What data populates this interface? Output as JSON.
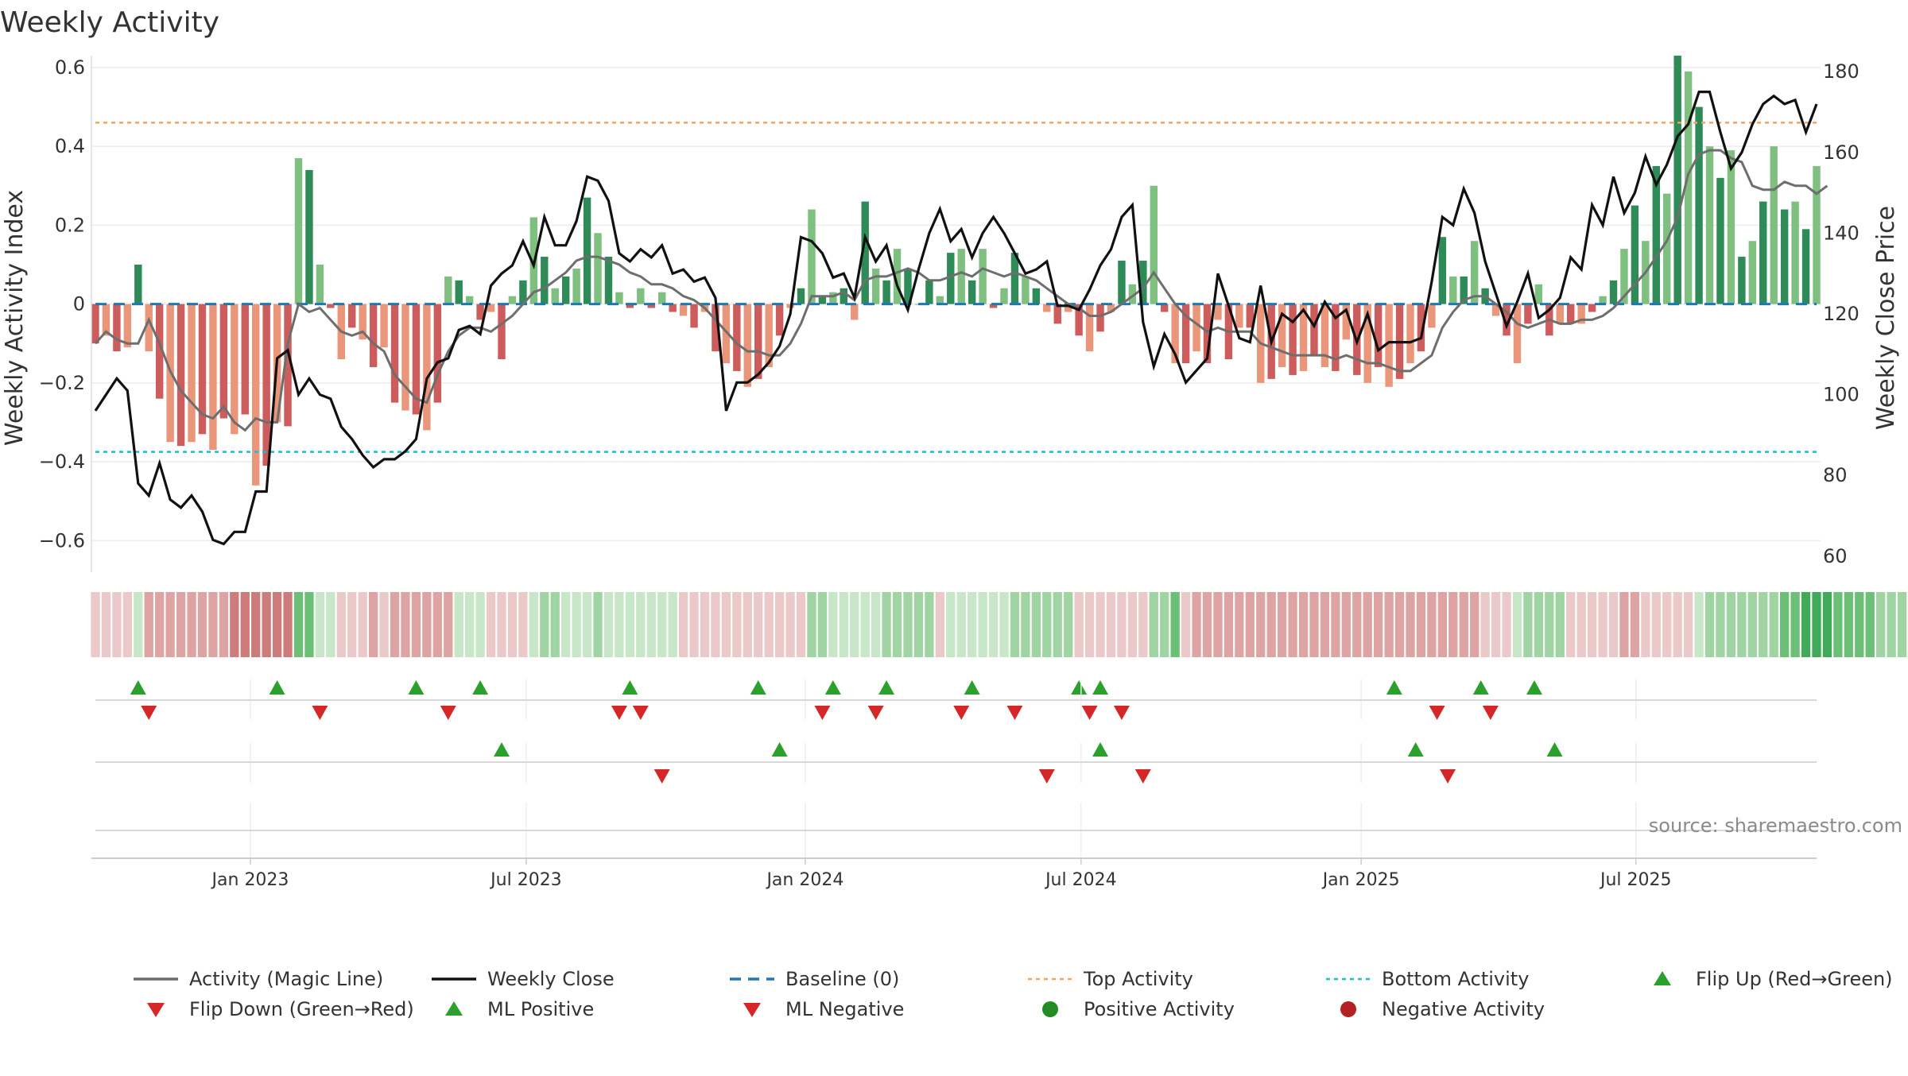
{
  "chart_data": {
    "type": "bar",
    "title": "Weekly Activity",
    "source": "source: sharemaestro.com",
    "left_axis": {
      "label": "Weekly Activity Index",
      "range": [
        -0.67,
        0.62
      ],
      "ticks": [
        0.6,
        0.4,
        0.2,
        0,
        -0.2,
        -0.4,
        -0.6
      ],
      "tick_labels": [
        "0.6",
        "0.4",
        "0.2",
        "0",
        "−0.2",
        "−0.4",
        "−0.6"
      ]
    },
    "right_axis": {
      "label": "Weekly Close Price",
      "range": [
        57,
        183
      ],
      "ticks": [
        180,
        160,
        140,
        120,
        100,
        80,
        60
      ],
      "tick_labels": [
        "180",
        "160",
        "140",
        "120",
        "100",
        "80",
        "60"
      ]
    },
    "x_axis": {
      "start_week_index": 0,
      "end_week_index": 155,
      "date_ticks": [
        {
          "label": "Jan 2023",
          "week": 14.5
        },
        {
          "label": "Jul 2023",
          "week": 40.3
        },
        {
          "label": "Jan 2024",
          "week": 66.4
        },
        {
          "label": "Jul 2024",
          "week": 92.2
        },
        {
          "label": "Jan 2025",
          "week": 118.4
        },
        {
          "label": "Jul 2025",
          "week": 144.1
        }
      ]
    },
    "reference_lines": {
      "baseline": 0,
      "top_activity": 0.46,
      "bottom_activity": -0.375
    },
    "activity_index": [
      -0.1,
      -0.08,
      -0.12,
      -0.11,
      0.1,
      -0.12,
      -0.24,
      -0.35,
      -0.36,
      -0.35,
      -0.33,
      -0.37,
      -0.29,
      -0.33,
      -0.28,
      -0.46,
      -0.41,
      -0.3,
      -0.31,
      0.37,
      0.34,
      0.1,
      -0.01,
      -0.14,
      -0.06,
      -0.09,
      -0.16,
      -0.11,
      -0.25,
      -0.27,
      -0.28,
      -0.32,
      -0.25,
      0.07,
      0.06,
      0.02,
      -0.04,
      -0.02,
      -0.14,
      0.02,
      0.06,
      0.22,
      0.12,
      0.04,
      0.07,
      0.09,
      0.27,
      0.18,
      0.12,
      0.03,
      -0.01,
      0.04,
      -0.01,
      0.03,
      -0.02,
      -0.03,
      -0.06,
      -0.02,
      -0.12,
      -0.15,
      -0.17,
      -0.21,
      -0.19,
      -0.16,
      -0.08,
      -0.01,
      0.04,
      0.24,
      0.02,
      0.03,
      0.04,
      -0.04,
      0.26,
      0.09,
      0.06,
      0.14,
      0.09,
      0.0,
      0.06,
      0.02,
      0.13,
      0.14,
      0.06,
      0.14,
      -0.01,
      0.04,
      0.13,
      0.07,
      0.04,
      -0.02,
      -0.05,
      -0.02,
      -0.08,
      -0.12,
      -0.07,
      -0.02,
      0.11,
      0.05,
      0.11,
      0.3,
      -0.02,
      -0.15,
      -0.15,
      -0.12,
      -0.15,
      -0.04,
      -0.14,
      -0.06,
      -0.06,
      -0.2,
      -0.19,
      -0.16,
      -0.18,
      -0.17,
      -0.13,
      -0.16,
      -0.17,
      -0.09,
      -0.18,
      -0.2,
      -0.16,
      -0.21,
      -0.19,
      -0.15,
      -0.12,
      -0.06,
      0.17,
      0.07,
      0.07,
      0.16,
      0.04,
      -0.03,
      -0.08,
      -0.15,
      -0.05,
      0.05,
      -0.08,
      -0.05,
      -0.05,
      -0.05,
      -0.02,
      0.02,
      0.06,
      0.14,
      0.25,
      0.16,
      0.35,
      0.28,
      0.63,
      0.59,
      0.5,
      0.4,
      0.32,
      0.39,
      0.12,
      0.16,
      0.26,
      0.4,
      0.24,
      0.26,
      0.19,
      0.35
    ],
    "magic_line": [
      -0.1,
      -0.07,
      -0.09,
      -0.1,
      -0.1,
      -0.04,
      -0.1,
      -0.17,
      -0.22,
      -0.25,
      -0.28,
      -0.29,
      -0.26,
      -0.3,
      -0.32,
      -0.29,
      -0.3,
      -0.3,
      -0.1,
      0.0,
      -0.02,
      -0.01,
      -0.04,
      -0.07,
      -0.08,
      -0.07,
      -0.1,
      -0.12,
      -0.18,
      -0.21,
      -0.24,
      -0.25,
      -0.18,
      -0.12,
      -0.08,
      -0.06,
      -0.06,
      -0.07,
      -0.05,
      -0.03,
      0.0,
      0.03,
      0.04,
      0.06,
      0.08,
      0.11,
      0.12,
      0.12,
      0.11,
      0.1,
      0.08,
      0.07,
      0.05,
      0.05,
      0.04,
      0.02,
      0.01,
      -0.01,
      -0.04,
      -0.07,
      -0.1,
      -0.12,
      -0.12,
      -0.13,
      -0.13,
      -0.1,
      -0.05,
      0.02,
      0.02,
      0.02,
      0.03,
      0.01,
      0.06,
      0.07,
      0.07,
      0.08,
      0.09,
      0.08,
      0.06,
      0.06,
      0.07,
      0.08,
      0.07,
      0.09,
      0.08,
      0.07,
      0.08,
      0.07,
      0.06,
      0.04,
      0.02,
      0.0,
      -0.01,
      -0.03,
      -0.03,
      -0.02,
      0.0,
      0.02,
      0.04,
      0.08,
      0.04,
      0.0,
      -0.03,
      -0.05,
      -0.07,
      -0.06,
      -0.07,
      -0.07,
      -0.07,
      -0.1,
      -0.11,
      -0.12,
      -0.13,
      -0.13,
      -0.13,
      -0.13,
      -0.14,
      -0.13,
      -0.14,
      -0.15,
      -0.15,
      -0.16,
      -0.17,
      -0.17,
      -0.15,
      -0.13,
      -0.06,
      -0.02,
      0.01,
      0.02,
      0.02,
      0.0,
      -0.02,
      -0.05,
      -0.06,
      -0.05,
      -0.04,
      -0.05,
      -0.05,
      -0.04,
      -0.04,
      -0.03,
      -0.01,
      0.02,
      0.05,
      0.08,
      0.12,
      0.16,
      0.22,
      0.33,
      0.38,
      0.39,
      0.39,
      0.37,
      0.36,
      0.3,
      0.29,
      0.29,
      0.31,
      0.3,
      0.3,
      0.28,
      0.3
    ],
    "weekly_close": [
      96,
      100,
      104,
      101,
      78,
      75,
      83,
      74,
      72,
      75,
      71,
      64,
      63,
      66,
      66,
      76,
      76,
      109,
      111,
      100,
      104,
      100,
      99,
      92,
      89,
      85,
      82,
      84,
      84,
      86,
      89,
      104,
      108,
      109,
      116,
      117,
      115,
      127,
      130,
      132,
      138,
      132,
      144,
      137,
      137,
      143,
      154,
      153,
      148,
      135,
      133,
      136,
      134,
      137,
      130,
      131,
      128,
      129,
      124,
      96,
      103,
      103,
      105,
      108,
      112,
      120,
      139,
      138,
      135,
      129,
      130,
      124,
      139,
      133,
      137,
      127,
      121,
      131,
      140,
      146,
      138,
      141,
      134,
      140,
      144,
      140,
      135,
      130,
      131,
      133,
      122,
      122,
      121,
      126,
      132,
      136,
      144,
      147,
      118,
      107,
      115,
      110,
      103,
      106,
      109,
      130,
      122,
      114,
      113,
      127,
      113,
      120,
      118,
      121,
      117,
      123,
      119,
      121,
      113,
      120,
      111,
      113,
      113,
      113,
      114,
      128,
      144,
      142,
      151,
      145,
      133,
      125,
      117,
      123,
      130,
      119,
      121,
      124,
      134,
      131,
      147,
      142,
      154,
      145,
      150,
      159,
      152,
      157,
      164,
      167,
      175,
      175,
      165,
      156,
      160,
      167,
      172,
      174,
      172,
      173,
      165,
      172
    ],
    "heat_strip": [
      -1,
      -1,
      -1,
      -1,
      1,
      -2,
      -2,
      -2,
      -2,
      -2,
      -2,
      -2,
      -2,
      -3,
      -3,
      -3,
      -3,
      -3,
      -3,
      3,
      3,
      1,
      1,
      -1,
      -1,
      -1,
      -2,
      -1,
      -2,
      -2,
      -2,
      -2,
      -2,
      -2,
      1,
      1,
      1,
      -1,
      -1,
      -1,
      -1,
      1,
      2,
      2,
      1,
      1,
      1,
      2,
      1,
      1,
      1,
      1,
      1,
      1,
      1,
      -1,
      -1,
      -1,
      -1,
      -1,
      -1,
      -1,
      -1,
      -1,
      -1,
      -1,
      -1,
      2,
      2,
      1,
      1,
      1,
      1,
      1,
      2,
      2,
      2,
      2,
      2,
      -1,
      1,
      1,
      1,
      1,
      1,
      1,
      2,
      2,
      2,
      2,
      2,
      2,
      -1,
      -1,
      -1,
      -1,
      -1,
      -1,
      -1,
      2,
      2,
      3,
      -1,
      -2,
      -2,
      -2,
      -2,
      -2,
      -2,
      -2,
      -2,
      -2,
      -2,
      -2,
      -2,
      -2,
      -2,
      -2,
      -2,
      -2,
      -2,
      -2,
      -2,
      -2,
      -2,
      -2,
      -2,
      -2,
      -2,
      -2,
      -1,
      -1,
      -1,
      1,
      2,
      2,
      2,
      2,
      -1,
      -1,
      -1,
      -1,
      -1,
      -2,
      -2,
      -1,
      -1,
      -1,
      -1,
      -1,
      1,
      2,
      2,
      2,
      2,
      2,
      2,
      2,
      3,
      3,
      4,
      4,
      4,
      3,
      3,
      3,
      3,
      2,
      2,
      2,
      3,
      3,
      2
    ],
    "flip_up_weeks": [
      4.0,
      17.0,
      30.0,
      36.0,
      50.0,
      62.0,
      69.0,
      74.0,
      82.0,
      92.0,
      94.0,
      121.5,
      129.6,
      134.6
    ],
    "flip_down_weeks": [
      5.0,
      21.0,
      33.0,
      49.0,
      51.0,
      68.0,
      73.0,
      81.0,
      86.0,
      93.0,
      96.0,
      125.5,
      130.5
    ],
    "ml_positive_weeks": [
      38.0,
      64.0,
      94.0,
      123.5,
      136.5
    ],
    "ml_negative_weeks": [
      53.0,
      89.0,
      98.0,
      126.5
    ],
    "positive_activity_weeks": [],
    "negative_activity_weeks": [],
    "legend": [
      {
        "label": "Activity (Magic Line)",
        "symbol": "line",
        "color": "#6e6e6e"
      },
      {
        "label": "Weekly Close",
        "symbol": "line",
        "color": "#111111"
      },
      {
        "label": "Baseline (0)",
        "symbol": "dash",
        "color": "#1f77b4"
      },
      {
        "label": "Top Activity",
        "symbol": "dot",
        "color": "#f4a460"
      },
      {
        "label": "Bottom Activity",
        "symbol": "dot",
        "color": "#17becf"
      },
      {
        "label": "Flip Up (Red→Green)",
        "symbol": "tri-up",
        "color": "#2ca02c"
      },
      {
        "label": "Flip Down (Green→Red)",
        "symbol": "tri-down",
        "color": "#d62728"
      },
      {
        "label": "ML Positive",
        "symbol": "tri-up",
        "color": "#2ca02c"
      },
      {
        "label": "ML Negative",
        "symbol": "tri-down",
        "color": "#d62728"
      },
      {
        "label": "Positive Activity",
        "symbol": "circle",
        "color": "#228b22"
      },
      {
        "label": "Negative Activity",
        "symbol": "circle",
        "color": "#b22222"
      }
    ],
    "colors": {
      "bar_pos_strong": "#2e8b57",
      "bar_pos_weak": "#7fbf7f",
      "bar_neg_strong": "#cd5c5c",
      "bar_neg_weak": "#e9967a",
      "magic_line": "#6e6e6e",
      "close_line": "#111111",
      "baseline": "#1f77b4",
      "top": "#f4a460",
      "bottom": "#17becf",
      "marker_up": "#2ca02c",
      "marker_down": "#d62728"
    }
  }
}
